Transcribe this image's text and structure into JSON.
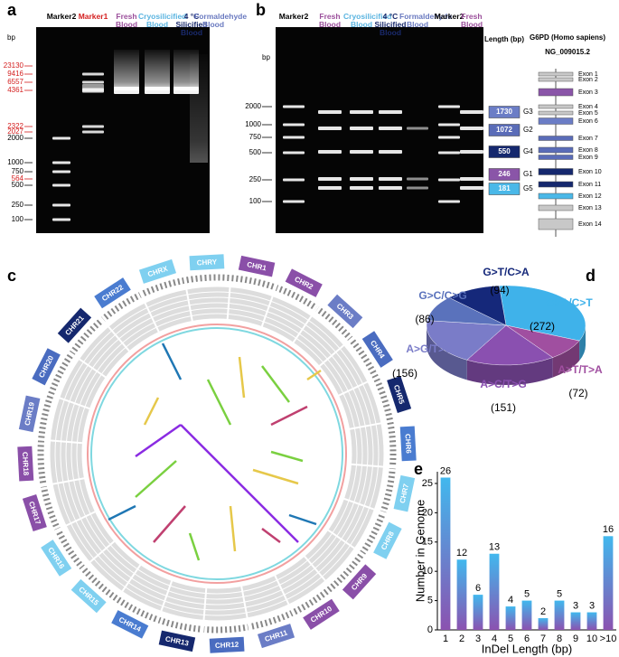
{
  "panel_labels": [
    "a",
    "b",
    "c",
    "d",
    "e"
  ],
  "panels": {
    "a": {
      "unit": "bp",
      "lanes": [
        {
          "name": "Marker2",
          "color": "#000000"
        },
        {
          "name": "Marker1",
          "color": "#d42020"
        },
        {
          "name": "Fresh Blood",
          "color": "#9b4f9b"
        },
        {
          "name": "Cryosilicified Blood",
          "color": "#5ab4e0"
        },
        {
          "name": "4 °C Silicified Blood",
          "color": "#1a2a6c"
        },
        {
          "name": "Formaldehyde Blood",
          "color": "#6a7ac0"
        }
      ],
      "size_labels": [
        {
          "text": "23130",
          "color": "#d42020"
        },
        {
          "text": "9416",
          "color": "#d42020"
        },
        {
          "text": "6557",
          "color": "#d42020"
        },
        {
          "text": "4361",
          "color": "#d42020"
        },
        {
          "text": "2322",
          "color": "#d42020"
        },
        {
          "text": "2027",
          "color": "#d42020"
        },
        {
          "text": "2000",
          "color": "#000000"
        },
        {
          "text": "1000",
          "color": "#000000"
        },
        {
          "text": "750",
          "color": "#000000"
        },
        {
          "text": "564",
          "color": "#d42020"
        },
        {
          "text": "500",
          "color": "#000000"
        },
        {
          "text": "250",
          "color": "#000000"
        },
        {
          "text": "100",
          "color": "#000000"
        }
      ]
    },
    "b": {
      "unit": "bp",
      "lanes": [
        {
          "name": "Marker2",
          "color": "#000000"
        },
        {
          "name": "Fresh Blood",
          "color": "#9b4f9b"
        },
        {
          "name": "Cryosilicified Blood",
          "color": "#5ab4e0"
        },
        {
          "name": "4 °C Silicified Blood",
          "color": "#1a2a6c"
        },
        {
          "name": "Formaldehyde Blood",
          "color": "#6a7ac0"
        },
        {
          "name": "Marker2",
          "color": "#000000"
        },
        {
          "name": "Fresh Blood",
          "color": "#9b4f9b"
        }
      ],
      "size_labels": [
        "2000",
        "1000",
        "750",
        "500",
        "250",
        "100"
      ],
      "length_header": "Length (bp)",
      "fragments": [
        {
          "length": "1730",
          "name": "G3",
          "color": "#6b7dc6"
        },
        {
          "length": "1072",
          "name": "G2",
          "color": "#5a6cb8"
        },
        {
          "length": "550",
          "name": "G4",
          "color": "#15286e"
        },
        {
          "length": "246",
          "name": "G1",
          "color": "#8a55a8"
        },
        {
          "length": "181",
          "name": "G5",
          "color": "#4ab8e8"
        }
      ],
      "gene": {
        "title": "G6PD (Homo sapiens)",
        "accession": "NG_009015.2",
        "exons": [
          {
            "name": "Exon 1",
            "color": "#c8c8c8"
          },
          {
            "name": "Exon 2",
            "color": "#c8c8c8"
          },
          {
            "name": "Exon 3",
            "color": "#8a55a8"
          },
          {
            "name": "Exon 4",
            "color": "#c8c8c8"
          },
          {
            "name": "Exon 5",
            "color": "#c8c8c8"
          },
          {
            "name": "Exon 6",
            "color": "#6b7dc6"
          },
          {
            "name": "Exon 7",
            "color": "#5a6cb8"
          },
          {
            "name": "Exon 8",
            "color": "#5a6cb8"
          },
          {
            "name": "Exon 9",
            "color": "#5a6cb8"
          },
          {
            "name": "Exon 10",
            "color": "#15286e"
          },
          {
            "name": "Exon 11",
            "color": "#15286e"
          },
          {
            "name": "Exon 12",
            "color": "#4ab8e8"
          },
          {
            "name": "Exon 13",
            "color": "#c8c8c8"
          },
          {
            "name": "Exon 14",
            "color": "#c8c8c8"
          }
        ]
      }
    },
    "c": {
      "chromosomes": [
        {
          "name": "CHR1",
          "color": "#8a4fa8"
        },
        {
          "name": "CHR2",
          "color": "#8a4fa8"
        },
        {
          "name": "CHR3",
          "color": "#6b7dc6"
        },
        {
          "name": "CHR4",
          "color": "#4a6cc0"
        },
        {
          "name": "CHR5",
          "color": "#15286e"
        },
        {
          "name": "CHR6",
          "color": "#4a7cd0"
        },
        {
          "name": "CHR7",
          "color": "#7fd0f0"
        },
        {
          "name": "CHR8",
          "color": "#7fd0f0"
        },
        {
          "name": "CHR9",
          "color": "#8a4fa8"
        },
        {
          "name": "CHR10",
          "color": "#8a4fa8"
        },
        {
          "name": "CHR11",
          "color": "#6b7dc6"
        },
        {
          "name": "CHR12",
          "color": "#4a6cc0"
        },
        {
          "name": "CHR13",
          "color": "#15286e"
        },
        {
          "name": "CHR14",
          "color": "#4a7cd0"
        },
        {
          "name": "CHR15",
          "color": "#7fd0f0"
        },
        {
          "name": "CHR16",
          "color": "#7fd0f0"
        },
        {
          "name": "CHR17",
          "color": "#8a4fa8"
        },
        {
          "name": "CHR18",
          "color": "#8a4fa8"
        },
        {
          "name": "CHR19",
          "color": "#6b7dc6"
        },
        {
          "name": "CHR20",
          "color": "#4a6cc0"
        },
        {
          "name": "CHR21",
          "color": "#15286e"
        },
        {
          "name": "CHR22",
          "color": "#4a7cd0"
        },
        {
          "name": "CHRX",
          "color": "#7fd0f0"
        },
        {
          "name": "CHRY",
          "color": "#7fd0f0"
        }
      ]
    }
  },
  "chart_data": [
    {
      "type": "pie",
      "categories": [
        "G>A/C>T",
        "A>T/T>A",
        "A>C/T>G",
        "A>G/T>C",
        "G>C/C>G",
        "G>T/C>A"
      ],
      "values": [
        272,
        72,
        151,
        156,
        86,
        94
      ],
      "value_labels": [
        "(272)",
        "(72)",
        "(151)",
        "(156)",
        "(86)",
        "(94)"
      ],
      "colors": [
        "#3fb2ea",
        "#a04fa0",
        "#8a50b0",
        "#7a7cc8",
        "#5a72bc",
        "#15287a"
      ]
    },
    {
      "type": "bar",
      "categories": [
        "1",
        "2",
        "3",
        "4",
        "5",
        "6",
        "7",
        "8",
        "9",
        "10",
        ">10"
      ],
      "values": [
        26,
        12,
        6,
        13,
        4,
        5,
        2,
        5,
        3,
        3,
        16
      ],
      "ylim": [
        0,
        27
      ],
      "yticks": [
        0,
        5,
        10,
        15,
        20,
        25
      ],
      "ylabel": "Number in Genome",
      "xlabel": "InDel Length (bp)",
      "gradient": [
        "#41b8ee",
        "#8b52b0"
      ]
    }
  ]
}
